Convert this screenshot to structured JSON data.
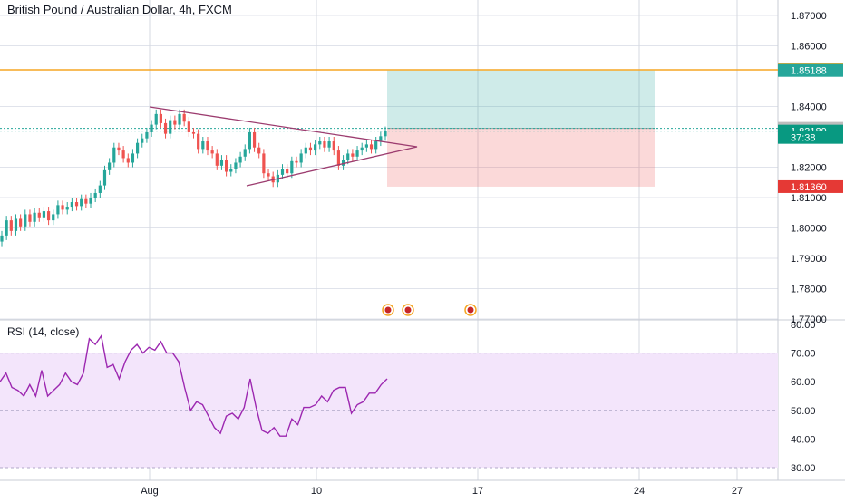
{
  "header": {
    "title": "British Pound / Australian Dollar, 4h, FXCM"
  },
  "rsi_panel": {
    "title": "RSI (14, close)"
  },
  "colors": {
    "up": "#26a69a",
    "down": "#ef5350",
    "target_line": "#f5a623",
    "pattern": "#9c3c6f",
    "rsi_line": "#9c27b0",
    "rsi_band": "#f3e5fb",
    "price_tag": "#26a69a",
    "last_tag": "#089981",
    "stop_tag": "#e53935",
    "grid": "#e0e3eb"
  },
  "chart_data": [
    {
      "type": "candlestick",
      "title": "British Pound / Australian Dollar, 4h, FXCM",
      "ylim": [
        1.77,
        1.875
      ],
      "y_ticks": [
        "1.87000",
        "1.86000",
        "1.84000",
        "1.82000",
        "1.81000",
        "1.80000",
        "1.79000",
        "1.78000",
        "1.77000"
      ],
      "x_ticks": [
        "Aug",
        "10",
        "17",
        "24",
        "27"
      ],
      "price_tags": [
        {
          "label": "1.85208",
          "value": 1.85208,
          "color": "#f5a623"
        },
        {
          "label": "1.85188",
          "value": 1.85188,
          "color": "#26a69a"
        },
        {
          "label": "1.83280",
          "value": 1.8328,
          "color": "#bdbdbd"
        },
        {
          "label": "1.83189",
          "value": 1.83189,
          "color": "#089981"
        },
        {
          "label": "37:38",
          "value": 1.8298,
          "color": "#089981"
        },
        {
          "label": "1.81360",
          "value": 1.8136,
          "color": "#e53935"
        }
      ],
      "position": {
        "entry": 1.8328,
        "target": 1.85188,
        "stop": 1.8136
      },
      "target_line": 1.85208,
      "closes": [
        1.7975,
        1.8025,
        1.799,
        1.803,
        1.8005,
        1.8045,
        1.802,
        1.805,
        1.8035,
        1.8055,
        1.8025,
        1.8045,
        1.8075,
        1.806,
        1.807,
        1.8085,
        1.8072,
        1.8095,
        1.808,
        1.81,
        1.8115,
        1.814,
        1.819,
        1.8215,
        1.8265,
        1.8255,
        1.823,
        1.8215,
        1.8245,
        1.828,
        1.8295,
        1.8315,
        1.834,
        1.8375,
        1.8345,
        1.831,
        1.8355,
        1.834,
        1.8375,
        1.835,
        1.8315,
        1.831,
        1.826,
        1.8285,
        1.8255,
        1.8245,
        1.8205,
        1.8225,
        1.8185,
        1.8195,
        1.8215,
        1.8235,
        1.826,
        1.8315,
        1.8265,
        1.8245,
        1.818,
        1.817,
        1.815,
        1.8175,
        1.8195,
        1.818,
        1.822,
        1.8215,
        1.8245,
        1.8265,
        1.8255,
        1.8275,
        1.8285,
        1.8265,
        1.8285,
        1.8255,
        1.8205,
        1.8225,
        1.8245,
        1.8235,
        1.8255,
        1.8265,
        1.8275,
        1.826,
        1.8285,
        1.8302,
        1.8319
      ]
    },
    {
      "type": "line",
      "title": "RSI (14, close)",
      "ylim": [
        28.0,
        80.0
      ],
      "y_ticks": [
        "80.00",
        "70.00",
        "60.00",
        "50.00",
        "40.00",
        "30.00"
      ],
      "band": [
        30,
        70
      ],
      "values": [
        60,
        63,
        58,
        57,
        55,
        59,
        55,
        64,
        55,
        57,
        59,
        63,
        60,
        59,
        63,
        75,
        73,
        76,
        65,
        66,
        61,
        67,
        71,
        73,
        70,
        72,
        71,
        74,
        70,
        70,
        67,
        58,
        50,
        53,
        52,
        48,
        44,
        42,
        48,
        49,
        47,
        51,
        61,
        51,
        43,
        42,
        44,
        41,
        41,
        47,
        45,
        51,
        51,
        52,
        55,
        53,
        57,
        58,
        58,
        49,
        52,
        53,
        56,
        56,
        59,
        61
      ]
    }
  ]
}
